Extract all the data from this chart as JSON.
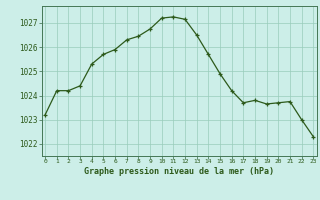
{
  "x": [
    0,
    1,
    2,
    3,
    4,
    5,
    6,
    7,
    8,
    9,
    10,
    11,
    12,
    13,
    14,
    15,
    16,
    17,
    18,
    19,
    20,
    21,
    22,
    23
  ],
  "y": [
    1023.2,
    1024.2,
    1024.2,
    1024.4,
    1025.3,
    1025.7,
    1025.9,
    1026.3,
    1026.45,
    1026.75,
    1027.2,
    1027.25,
    1027.15,
    1026.5,
    1025.7,
    1024.9,
    1024.2,
    1023.7,
    1023.8,
    1023.65,
    1023.7,
    1023.75,
    1023.0,
    1022.3
  ],
  "line_color": "#2d5a1b",
  "marker_color": "#2d5a1b",
  "bg_color": "#cceee8",
  "grid_color": "#99ccbb",
  "xlabel": "Graphe pression niveau de la mer (hPa)",
  "yticks": [
    1022,
    1023,
    1024,
    1025,
    1026,
    1027
  ],
  "xticks": [
    0,
    1,
    2,
    3,
    4,
    5,
    6,
    7,
    8,
    9,
    10,
    11,
    12,
    13,
    14,
    15,
    16,
    17,
    18,
    19,
    20,
    21,
    22,
    23
  ],
  "ylim": [
    1021.5,
    1027.7
  ],
  "xlim": [
    -0.3,
    23.3
  ]
}
